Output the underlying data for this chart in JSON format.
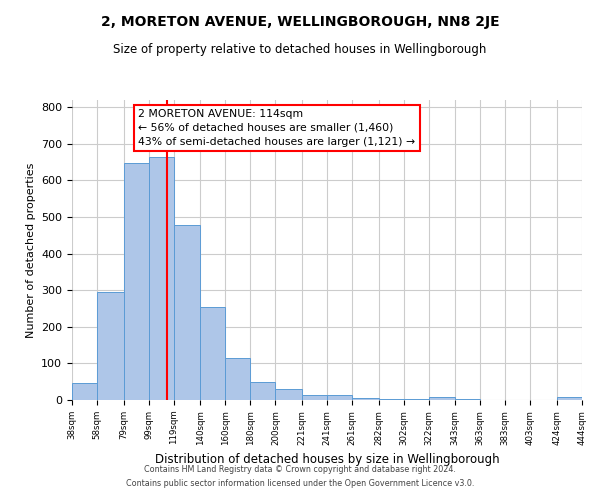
{
  "title": "2, MORETON AVENUE, WELLINGBOROUGH, NN8 2JE",
  "subtitle": "Size of property relative to detached houses in Wellingborough",
  "xlabel": "Distribution of detached houses by size in Wellingborough",
  "ylabel": "Number of detached properties",
  "bar_left_edges": [
    38,
    58,
    79,
    99,
    119,
    140,
    160,
    180,
    200,
    221,
    241,
    261,
    282,
    302,
    322,
    343,
    363,
    383,
    403,
    424
  ],
  "bar_heights": [
    47,
    295,
    648,
    665,
    477,
    254,
    114,
    48,
    29,
    15,
    14,
    5,
    4,
    3,
    8,
    2,
    0,
    0,
    0,
    7
  ],
  "bar_widths": [
    20,
    21,
    20,
    20,
    21,
    20,
    20,
    20,
    21,
    20,
    20,
    21,
    20,
    20,
    21,
    20,
    20,
    20,
    21,
    20
  ],
  "tick_labels": [
    "38sqm",
    "58sqm",
    "79sqm",
    "99sqm",
    "119sqm",
    "140sqm",
    "160sqm",
    "180sqm",
    "200sqm",
    "221sqm",
    "241sqm",
    "261sqm",
    "282sqm",
    "302sqm",
    "322sqm",
    "343sqm",
    "363sqm",
    "383sqm",
    "403sqm",
    "424sqm",
    "444sqm"
  ],
  "tick_positions": [
    38,
    58,
    79,
    99,
    119,
    140,
    160,
    180,
    200,
    221,
    241,
    261,
    282,
    302,
    322,
    343,
    363,
    383,
    403,
    424,
    444
  ],
  "bar_color": "#aec6e8",
  "bar_edge_color": "#5b9bd5",
  "vline_x": 114,
  "vline_color": "red",
  "annotation_line1": "2 MORETON AVENUE: 114sqm",
  "annotation_line2": "← 56% of detached houses are smaller (1,460)",
  "annotation_line3": "43% of semi-detached houses are larger (1,121) →",
  "ylim": [
    0,
    820
  ],
  "yticks": [
    0,
    100,
    200,
    300,
    400,
    500,
    600,
    700,
    800
  ],
  "xlim": [
    38,
    444
  ],
  "background_color": "#ffffff",
  "grid_color": "#cccccc",
  "footer_line1": "Contains HM Land Registry data © Crown copyright and database right 2024.",
  "footer_line2": "Contains public sector information licensed under the Open Government Licence v3.0."
}
